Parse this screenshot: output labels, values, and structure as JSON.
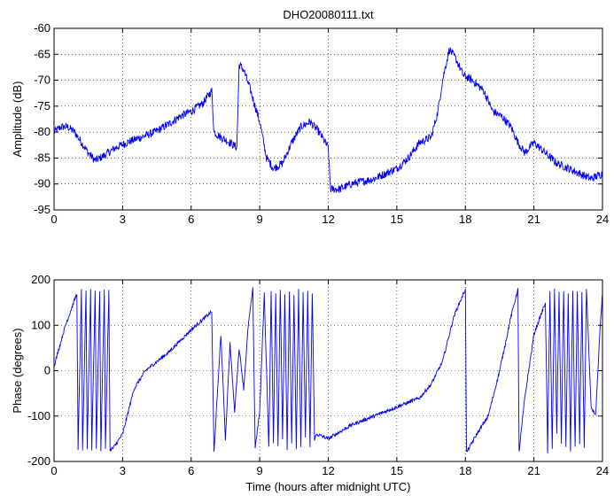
{
  "chart_data": [
    {
      "type": "line",
      "title": "DHO20080111.txt",
      "xlabel": "",
      "ylabel": "Amplitude (dB)",
      "xlim": [
        0,
        24
      ],
      "ylim": [
        -95,
        -60
      ],
      "xticks": [
        "0",
        "3",
        "6",
        "9",
        "12",
        "15",
        "18",
        "21",
        "24"
      ],
      "yticks": [
        "-60",
        "-65",
        "-70",
        "-75",
        "-80",
        "-85",
        "-90",
        "-95"
      ],
      "grid": true,
      "series": [
        {
          "color": "#0000ff",
          "noise": 0.8,
          "x": [
            0,
            0.3,
            0.6,
            0.9,
            1.2,
            1.5,
            1.8,
            2.2,
            2.7,
            3.2,
            3.8,
            4.4,
            5.0,
            5.5,
            6.0,
            6.5,
            6.9,
            7.0,
            7.3,
            7.7,
            8.0,
            8.1,
            8.3,
            8.6,
            9.0,
            9.3,
            9.6,
            10.0,
            10.4,
            10.8,
            11.2,
            11.6,
            12.0,
            12.1,
            12.5,
            13.0,
            13.5,
            14.0,
            14.5,
            15.0,
            15.5,
            16.0,
            16.5,
            16.8,
            17.0,
            17.3,
            17.6,
            17.9,
            18.3,
            18.8,
            19.2,
            19.6,
            20.0,
            20.3,
            20.6,
            21.0,
            21.5,
            22.0,
            22.5,
            23.0,
            23.5,
            24.0
          ],
          "y": [
            -80,
            -79,
            -79,
            -80,
            -82,
            -84,
            -85.5,
            -84.5,
            -83,
            -82,
            -81,
            -80,
            -78.5,
            -77,
            -76,
            -74.5,
            -72,
            -80,
            -81,
            -82,
            -83,
            -67,
            -68,
            -72,
            -78,
            -85,
            -87,
            -86,
            -82,
            -79,
            -78,
            -80,
            -83,
            -91,
            -91,
            -90,
            -89.5,
            -89,
            -88,
            -87,
            -85,
            -82,
            -81,
            -76,
            -70,
            -64,
            -66,
            -69,
            -70,
            -72,
            -76,
            -77,
            -79,
            -82,
            -84,
            -82,
            -84,
            -86,
            -87,
            -88,
            -89,
            -88
          ]
        }
      ]
    },
    {
      "type": "line",
      "title": "",
      "xlabel": "Time (hours after midnight UTC)",
      "ylabel": "Phase (degrees)",
      "xlim": [
        0,
        24
      ],
      "ylim": [
        -200,
        200
      ],
      "xticks": [
        "0",
        "3",
        "6",
        "9",
        "12",
        "15",
        "18",
        "21",
        "24"
      ],
      "yticks": [
        "200",
        "100",
        "0",
        "-100",
        "-200"
      ],
      "grid": true,
      "series": [
        {
          "color": "#0000ff",
          "noise": 4,
          "x": [
            0,
            0.5,
            1.0,
            1.05,
            1.2,
            1.25,
            1.4,
            1.45,
            1.6,
            1.65,
            1.8,
            1.85,
            2.0,
            2.05,
            2.2,
            2.25,
            2.4,
            2.45,
            2.6,
            3.0,
            3.5,
            4.0,
            5.0,
            6.0,
            6.9,
            7.0,
            7.3,
            7.5,
            7.7,
            7.9,
            8.1,
            8.3,
            8.5,
            8.7,
            8.8,
            9.0,
            9.2,
            9.4,
            9.5,
            9.6,
            9.7,
            9.8,
            9.9,
            10.0,
            10.1,
            10.2,
            10.3,
            10.4,
            10.5,
            10.6,
            10.7,
            10.8,
            10.9,
            11.0,
            11.1,
            11.2,
            11.3,
            11.4,
            11.5,
            12.0,
            13.0,
            14.0,
            15.0,
            16.0,
            16.5,
            17.0,
            17.5,
            18.0,
            18.05,
            18.5,
            19.0,
            19.5,
            20.0,
            20.3,
            20.35,
            20.6,
            21.0,
            21.5,
            21.6,
            21.7,
            21.8,
            21.9,
            22.0,
            22.1,
            22.2,
            22.3,
            22.4,
            22.5,
            22.6,
            22.7,
            22.8,
            22.9,
            23.0,
            23.1,
            23.2,
            23.3,
            23.5,
            23.7,
            23.9,
            24.0
          ],
          "y": [
            10,
            100,
            170,
            -175,
            178,
            -175,
            178,
            -170,
            178,
            -175,
            178,
            -170,
            178,
            -175,
            178,
            -172,
            178,
            -175,
            -170,
            -140,
            -40,
            0,
            40,
            90,
            130,
            -180,
            80,
            -150,
            60,
            -90,
            50,
            -40,
            100,
            180,
            -170,
            -90,
            170,
            -170,
            175,
            -160,
            170,
            -170,
            178,
            -150,
            170,
            -175,
            178,
            -160,
            170,
            -175,
            178,
            -170,
            170,
            -150,
            175,
            -170,
            170,
            -150,
            -140,
            -150,
            -120,
            -100,
            -80,
            -60,
            -30,
            20,
            120,
            180,
            -180,
            -140,
            -100,
            0,
            120,
            180,
            -180,
            -60,
            80,
            150,
            -180,
            175,
            -170,
            178,
            -140,
            175,
            -160,
            178,
            -170,
            170,
            -175,
            178,
            -170,
            175,
            -160,
            170,
            -170,
            176,
            -80,
            -100,
            100,
            170
          ]
        }
      ]
    }
  ]
}
